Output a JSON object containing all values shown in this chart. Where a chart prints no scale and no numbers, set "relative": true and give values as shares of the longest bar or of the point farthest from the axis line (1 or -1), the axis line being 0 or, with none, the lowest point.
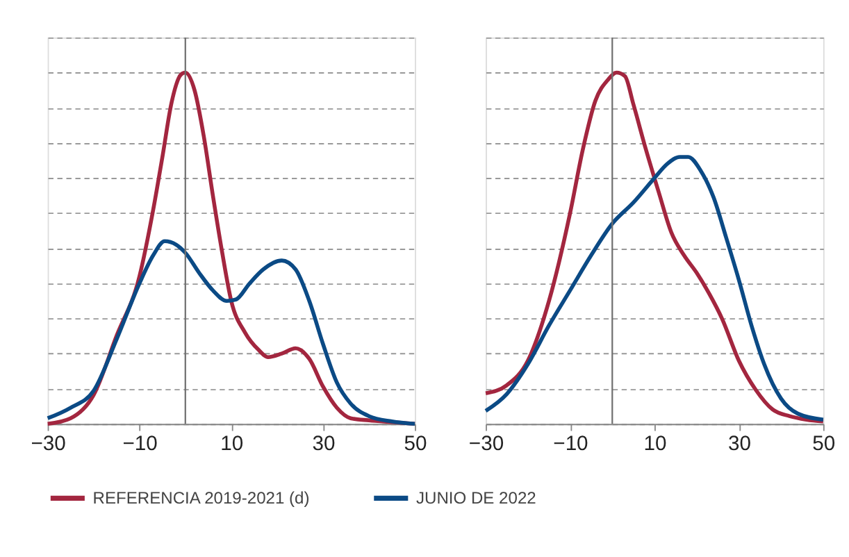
{
  "chart_data": [
    {
      "type": "line",
      "relative": true,
      "legend": "bottom",
      "grid": "y",
      "line_style": "solid",
      "xlim": [
        -30,
        50
      ],
      "xticks": [
        -30,
        -10,
        10,
        30,
        50
      ],
      "ref_lines": [
        {
          "axis": "x",
          "value": 0,
          "color": "#707070"
        }
      ],
      "series": [
        {
          "name": "REFERENCIA 2019-2021 (d)",
          "color": "#a3263f",
          "x": [
            -30,
            -25,
            -20,
            -15,
            -10,
            -7,
            -5,
            -3,
            -1,
            0,
            2,
            4,
            6,
            8,
            10,
            13,
            16,
            18,
            21,
            24,
            27,
            30,
            33,
            36,
            40,
            45,
            50
          ],
          "values": [
            0,
            0.016,
            0.082,
            0.25,
            0.42,
            0.61,
            0.76,
            0.915,
            0.994,
            1,
            0.95,
            0.82,
            0.65,
            0.49,
            0.35,
            0.26,
            0.21,
            0.19,
            0.2,
            0.215,
            0.185,
            0.106,
            0.046,
            0.016,
            0.01,
            0.005,
            0
          ]
        },
        {
          "name": "JUNIO DE 2022",
          "color": "#0b4a85",
          "x": [
            -30,
            -25,
            -20,
            -15,
            -10,
            -7,
            -4.5,
            -2,
            0,
            3,
            6,
            9,
            11,
            14,
            17,
            21,
            24,
            27,
            30,
            33,
            36,
            40,
            45,
            50
          ],
          "values": [
            0.016,
            0.046,
            0.094,
            0.24,
            0.4,
            0.48,
            0.52,
            0.51,
            0.487,
            0.43,
            0.38,
            0.35,
            0.354,
            0.4,
            0.44,
            0.465,
            0.44,
            0.35,
            0.227,
            0.118,
            0.058,
            0.022,
            0.007,
            0
          ]
        }
      ]
    },
    {
      "type": "line",
      "relative": true,
      "legend": "bottom",
      "grid": "y",
      "line_style": "solid",
      "xlim": [
        -30,
        50
      ],
      "xticks": [
        -30,
        -10,
        10,
        30,
        50
      ],
      "ref_lines": [
        {
          "axis": "x",
          "value": 0,
          "color": "#707070"
        }
      ],
      "series": [
        {
          "name": "REFERENCIA 2019-2021 (d)",
          "color": "#a3263f",
          "x": [
            -30,
            -25,
            -20,
            -15,
            -10,
            -7,
            -4,
            -1,
            1,
            3,
            5,
            8,
            11,
            14,
            17,
            20,
            23,
            26,
            30,
            34,
            38,
            42,
            46,
            50
          ],
          "values": [
            0.087,
            0.11,
            0.18,
            0.35,
            0.6,
            0.78,
            0.92,
            0.98,
            1,
            0.99,
            0.91,
            0.78,
            0.66,
            0.545,
            0.48,
            0.43,
            0.37,
            0.3,
            0.18,
            0.097,
            0.041,
            0.022,
            0.012,
            0.007
          ]
        },
        {
          "name": "JUNIO DE 2022",
          "color": "#0b4a85",
          "x": [
            -30,
            -25,
            -20,
            -15,
            -10,
            -5,
            0,
            5,
            10,
            13,
            16,
            18,
            21,
            24,
            27,
            30,
            33,
            36,
            40,
            44,
            50
          ],
          "values": [
            0.037,
            0.085,
            0.17,
            0.28,
            0.38,
            0.48,
            0.57,
            0.63,
            0.7,
            0.74,
            0.76,
            0.76,
            0.72,
            0.645,
            0.53,
            0.41,
            0.28,
            0.17,
            0.072,
            0.029,
            0.012
          ]
        }
      ]
    }
  ]
}
